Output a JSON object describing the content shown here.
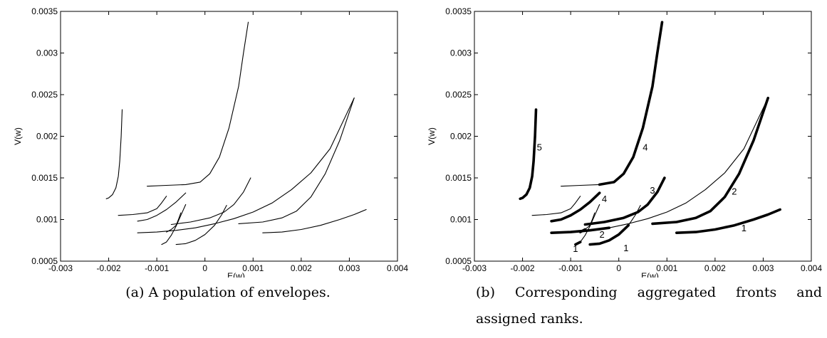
{
  "chart_data": [
    {
      "type": "line",
      "caption": "(a) A population of envelopes.",
      "xlabel": "E(w)",
      "ylabel": "V(w)",
      "xlim": [
        -0.003,
        0.004
      ],
      "ylim": [
        0.0005,
        0.0035
      ],
      "xticks": [
        "-0.003",
        "-0.002",
        "-0.001",
        "0",
        "0.001",
        "0.002",
        "0.003",
        "0.004"
      ],
      "yticks": [
        "0.0005",
        "0.001",
        "0.0015",
        "0.002",
        "0.0025",
        "0.003",
        "0.0035"
      ],
      "series": [
        {
          "x": [
            -0.00205,
            -0.002,
            -0.00192,
            -0.00185,
            -0.0018,
            -0.00177,
            -0.00174,
            -0.00172
          ],
          "y": [
            0.00125,
            0.00126,
            0.0013,
            0.00138,
            0.00152,
            0.0017,
            0.002,
            0.00232
          ]
        },
        {
          "x": [
            -0.0012,
            -0.0008,
            -0.0004,
            -0.0001,
            0.0001,
            0.0003,
            0.0005,
            0.0007,
            0.0008,
            0.0009
          ],
          "y": [
            0.0014,
            0.00141,
            0.00142,
            0.00145,
            0.00155,
            0.00175,
            0.0021,
            0.0026,
            0.003,
            0.00337
          ]
        },
        {
          "x": [
            -0.0018,
            -0.0015,
            -0.0012,
            -0.001,
            -0.0009,
            -0.0008
          ],
          "y": [
            0.00105,
            0.00106,
            0.00108,
            0.00113,
            0.0012,
            0.00128
          ]
        },
        {
          "x": [
            -0.0014,
            -0.0012,
            -0.001,
            -0.0008,
            -0.0006,
            -0.0004
          ],
          "y": [
            0.00098,
            0.001,
            0.00105,
            0.00112,
            0.00121,
            0.00132
          ]
        },
        {
          "x": [
            -0.0008,
            -0.0007,
            -0.0006,
            -0.00055,
            -0.0005
          ],
          "y": [
            0.00085,
            0.00088,
            0.00093,
            0.001,
            0.00108
          ]
        },
        {
          "x": [
            -0.0014,
            -0.001,
            -0.0006,
            -0.0002,
            0.0002,
            0.0006,
            0.001,
            0.0014,
            0.0018,
            0.0022,
            0.0026,
            0.0031
          ],
          "y": [
            0.00084,
            0.00085,
            0.00087,
            0.0009,
            0.00095,
            0.00101,
            0.00109,
            0.0012,
            0.00136,
            0.00156,
            0.00185,
            0.00246
          ]
        },
        {
          "x": [
            -0.0009,
            -0.0008,
            -0.0007,
            -0.0006,
            -0.0005,
            -0.0004
          ],
          "y": [
            0.0007,
            0.00073,
            0.00081,
            0.00092,
            0.00105,
            0.00118
          ]
        },
        {
          "x": [
            -0.0007,
            -0.0003,
            0.0001,
            0.0004,
            0.0006,
            0.0008,
            0.00095
          ],
          "y": [
            0.00094,
            0.00097,
            0.00102,
            0.00109,
            0.00118,
            0.00133,
            0.0015
          ]
        },
        {
          "x": [
            -0.0006,
            -0.0004,
            -0.0002,
            0.0,
            0.0002,
            0.00035,
            0.00045
          ],
          "y": [
            0.0007,
            0.00071,
            0.00075,
            0.00082,
            0.00093,
            0.00106,
            0.00117
          ]
        },
        {
          "x": [
            0.0007,
            0.0012,
            0.0016,
            0.0019,
            0.0022,
            0.0025,
            0.0028,
            0.0031
          ],
          "y": [
            0.00095,
            0.00097,
            0.00102,
            0.0011,
            0.00127,
            0.00155,
            0.00195,
            0.00246
          ]
        },
        {
          "x": [
            0.0012,
            0.0016,
            0.002,
            0.0024,
            0.0028,
            0.0031,
            0.00335
          ],
          "y": [
            0.00084,
            0.00085,
            0.00088,
            0.00093,
            0.001,
            0.00106,
            0.00112
          ]
        }
      ]
    },
    {
      "type": "line",
      "caption": "(b) Corresponding aggregated fronts and assigned ranks.",
      "xlabel": "E(w)",
      "ylabel": "V(w)",
      "xlim": [
        -0.003,
        0.004
      ],
      "ylim": [
        0.0005,
        0.0035
      ],
      "xticks": [
        "-0.003",
        "-0.002",
        "-0.001",
        "0",
        "0.001",
        "0.002",
        "0.003",
        "0.004"
      ],
      "yticks": [
        "0.0005",
        "0.001",
        "0.0015",
        "0.002",
        "0.0025",
        "0.003",
        "0.0035"
      ],
      "series": [
        {
          "x": [
            -0.00205,
            -0.002,
            -0.00192,
            -0.00185,
            -0.0018,
            -0.00177,
            -0.00174,
            -0.00172
          ],
          "y": [
            0.00125,
            0.00126,
            0.0013,
            0.00138,
            0.00152,
            0.0017,
            0.002,
            0.00232
          ],
          "bold": [
            0,
            7
          ]
        },
        {
          "x": [
            -0.0012,
            -0.0008,
            -0.0004,
            -0.0001,
            0.0001,
            0.0003,
            0.0005,
            0.0007,
            0.0008,
            0.0009
          ],
          "y": [
            0.0014,
            0.00141,
            0.00142,
            0.00145,
            0.00155,
            0.00175,
            0.0021,
            0.0026,
            0.003,
            0.00337
          ],
          "bold": [
            2,
            9
          ]
        },
        {
          "x": [
            -0.0018,
            -0.0015,
            -0.0012,
            -0.001,
            -0.0009,
            -0.0008
          ],
          "y": [
            0.00105,
            0.00106,
            0.00108,
            0.00113,
            0.0012,
            0.00128
          ]
        },
        {
          "x": [
            -0.0014,
            -0.0012,
            -0.001,
            -0.0008,
            -0.0006,
            -0.0004
          ],
          "y": [
            0.00098,
            0.001,
            0.00105,
            0.00112,
            0.00121,
            0.00132
          ],
          "bold": [
            0,
            5
          ]
        },
        {
          "x": [
            -0.0008,
            -0.0007,
            -0.0006,
            -0.00055,
            -0.0005
          ],
          "y": [
            0.00085,
            0.00088,
            0.00093,
            0.001,
            0.00108
          ],
          "bold": [
            0,
            1
          ]
        },
        {
          "x": [
            -0.0014,
            -0.001,
            -0.0006,
            -0.0002,
            0.0002,
            0.0006,
            0.001,
            0.0014,
            0.0018,
            0.0022,
            0.0026,
            0.0031
          ],
          "y": [
            0.00084,
            0.00085,
            0.00087,
            0.0009,
            0.00095,
            0.00101,
            0.00109,
            0.0012,
            0.00136,
            0.00156,
            0.00185,
            0.00246
          ],
          "bold": [
            0,
            3
          ]
        },
        {
          "x": [
            -0.0009,
            -0.0008,
            -0.0007,
            -0.0006,
            -0.0005,
            -0.0004
          ],
          "y": [
            0.0007,
            0.00073,
            0.00081,
            0.00092,
            0.00105,
            0.00118
          ],
          "bold": [
            0,
            1
          ]
        },
        {
          "x": [
            -0.0007,
            -0.0003,
            0.0001,
            0.0004,
            0.0006,
            0.0008,
            0.00095
          ],
          "y": [
            0.00094,
            0.00097,
            0.00102,
            0.00109,
            0.00118,
            0.00133,
            0.0015
          ],
          "bold": [
            0,
            6
          ]
        },
        {
          "x": [
            -0.0006,
            -0.0004,
            -0.0002,
            0.0,
            0.0002,
            0.00035,
            0.00045
          ],
          "y": [
            0.0007,
            0.00071,
            0.00075,
            0.00082,
            0.00093,
            0.00106,
            0.00117
          ],
          "bold": [
            0,
            4
          ]
        },
        {
          "x": [
            0.0007,
            0.0012,
            0.0016,
            0.0019,
            0.0022,
            0.0025,
            0.0028,
            0.0031
          ],
          "y": [
            0.00095,
            0.00097,
            0.00102,
            0.0011,
            0.00127,
            0.00155,
            0.00195,
            0.00246
          ],
          "bold": [
            0,
            7
          ]
        },
        {
          "x": [
            0.0012,
            0.0016,
            0.002,
            0.0024,
            0.0028,
            0.0031,
            0.00335
          ],
          "y": [
            0.00084,
            0.00085,
            0.00088,
            0.00093,
            0.001,
            0.00106,
            0.00112
          ],
          "bold": [
            0,
            6
          ]
        }
      ],
      "annotations": [
        {
          "text": "5",
          "x": -0.00165,
          "y": 0.00183
        },
        {
          "text": "4",
          "x": 0.00055,
          "y": 0.00183
        },
        {
          "text": "4",
          "x": -0.0003,
          "y": 0.00121
        },
        {
          "text": "3",
          "x": 0.0007,
          "y": 0.00131
        },
        {
          "text": "2",
          "x": 0.0024,
          "y": 0.0013
        },
        {
          "text": "2",
          "x": -0.00035,
          "y": 0.00078
        },
        {
          "text": "1",
          "x": -0.0009,
          "y": 0.00061
        },
        {
          "text": "1",
          "x": 0.00015,
          "y": 0.00062
        },
        {
          "text": "1",
          "x": 0.0026,
          "y": 0.00086
        }
      ]
    }
  ]
}
